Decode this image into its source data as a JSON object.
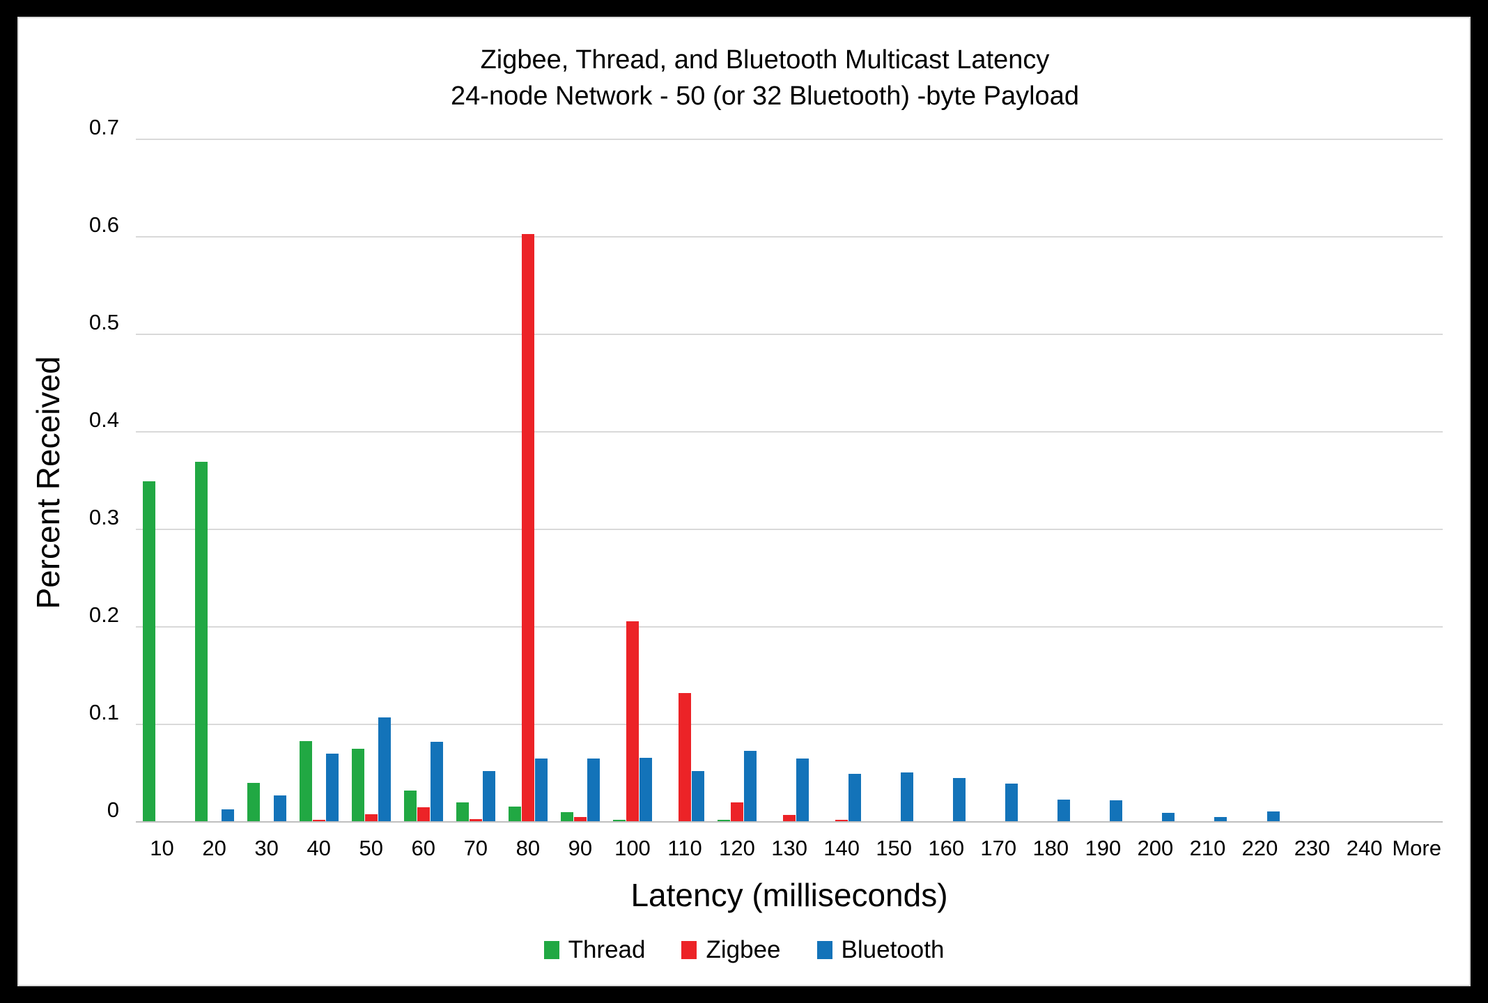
{
  "title": {
    "line1": "Zigbee, Thread, and Bluetooth Multicast Latency",
    "line2": "24-node Network - 50 (or 32 Bluetooth) -byte Payload"
  },
  "chart_data": {
    "type": "bar",
    "title": "Zigbee, Thread, and Bluetooth Multicast Latency",
    "subtitle": "24-node Network - 50 (or 32 Bluetooth) -byte Payload",
    "xlabel": "Latency (milliseconds)",
    "ylabel": "Percent Received",
    "ylim": [
      0,
      0.7
    ],
    "ytick_step": 0.1,
    "yticks": [
      0,
      0.1,
      0.2,
      0.3,
      0.4,
      0.5,
      0.6,
      0.7
    ],
    "ytick_labels": [
      "0",
      "0.1",
      "0.2",
      "0.3",
      "0.4",
      "0.5",
      "0.6",
      "0.7"
    ],
    "grid": true,
    "legend_position": "bottom",
    "categories": [
      "10",
      "20",
      "30",
      "40",
      "50",
      "60",
      "70",
      "80",
      "90",
      "100",
      "110",
      "120",
      "130",
      "140",
      "150",
      "160",
      "170",
      "180",
      "190",
      "200",
      "210",
      "220",
      "230",
      "240",
      "More"
    ],
    "series": [
      {
        "name": "Thread",
        "color": "#21a843",
        "values": [
          0.349,
          0.369,
          0.04,
          0.083,
          0.075,
          0.032,
          0.02,
          0.016,
          0.01,
          0.002,
          0.001,
          0.002,
          0.001,
          0,
          0.001,
          0,
          0.001,
          0.001,
          0,
          0,
          0,
          0,
          0,
          0,
          0
        ]
      },
      {
        "name": "Zigbee",
        "color": "#ec2327",
        "values": [
          0,
          0,
          0,
          0.002,
          0.008,
          0.015,
          0.003,
          0.603,
          0.005,
          0.206,
          0.132,
          0.02,
          0.007,
          0.002,
          0,
          0,
          0,
          0,
          0,
          0,
          0,
          0,
          0,
          0,
          0
        ]
      },
      {
        "name": "Bluetooth",
        "color": "#1373b9",
        "values": [
          0,
          0.013,
          0.027,
          0.07,
          0.107,
          0.082,
          0.052,
          0.065,
          0.065,
          0.066,
          0.052,
          0.073,
          0.065,
          0.049,
          0.051,
          0.045,
          0.039,
          0.023,
          0.022,
          0.009,
          0.005,
          0.011,
          0,
          0,
          0
        ]
      }
    ],
    "gridline_color": "#d9d9d9",
    "axis_line_color": "#bfbfbf",
    "text_color": "#000000",
    "background_color": "#ffffff",
    "frame_color": "#000000"
  }
}
